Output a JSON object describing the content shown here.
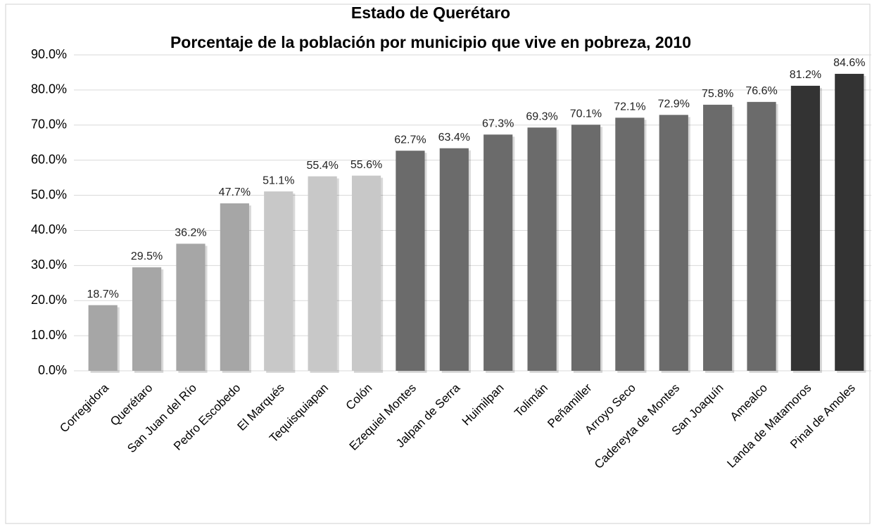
{
  "chart_data": {
    "type": "bar",
    "title": "Estado de Querétaro",
    "subtitle": "Porcentaje de la población por municipio que vive en pobreza, 2010",
    "categories": [
      "Corregidora",
      "Querétaro",
      "San Juan del Río",
      "Pedro Escobedo",
      "El Marqués",
      "Tequisquiapan",
      "Colón",
      "Ezequiel Montes",
      "Jalpan de Serra",
      "Huimilpan",
      "Tolimán",
      "Peñamiller",
      "Arroyo Seco",
      "Cadereyta de Montes",
      "San Joaquín",
      "Amealco",
      "Landa de Matamoros",
      "Pinal de Amoles"
    ],
    "values": [
      18.7,
      29.5,
      36.2,
      47.7,
      51.1,
      55.4,
      55.6,
      62.7,
      63.4,
      67.3,
      69.3,
      70.1,
      72.1,
      72.9,
      75.8,
      76.6,
      81.2,
      84.6
    ],
    "value_labels": [
      "18.7%",
      "29.5%",
      "36.2%",
      "47.7%",
      "51.1%",
      "55.4%",
      "55.6%",
      "62.7%",
      "63.4%",
      "67.3%",
      "69.3%",
      "70.1%",
      "72.1%",
      "72.9%",
      "75.8%",
      "76.6%",
      "81.2%",
      "84.6%"
    ],
    "colors": [
      "#a6a6a6",
      "#a6a6a6",
      "#a6a6a6",
      "#a6a6a6",
      "#c8c8c8",
      "#c8c8c8",
      "#c8c8c8",
      "#6b6b6b",
      "#6b6b6b",
      "#6b6b6b",
      "#6b6b6b",
      "#6b6b6b",
      "#6b6b6b",
      "#6b6b6b",
      "#6b6b6b",
      "#6b6b6b",
      "#333333",
      "#333333"
    ],
    "ylim": [
      0,
      90
    ],
    "yticks": [
      {
        "value": 0,
        "label": "0.0%"
      },
      {
        "value": 10,
        "label": "10.0%"
      },
      {
        "value": 20,
        "label": "20.0%"
      },
      {
        "value": 30,
        "label": "30.0%"
      },
      {
        "value": 40,
        "label": "40.0%"
      },
      {
        "value": 50,
        "label": "50.0%"
      },
      {
        "value": 60,
        "label": "60.0%"
      },
      {
        "value": 70,
        "label": "70.0%"
      },
      {
        "value": 80,
        "label": "80.0%"
      },
      {
        "value": 90,
        "label": "90.0%"
      }
    ],
    "grid": true
  }
}
